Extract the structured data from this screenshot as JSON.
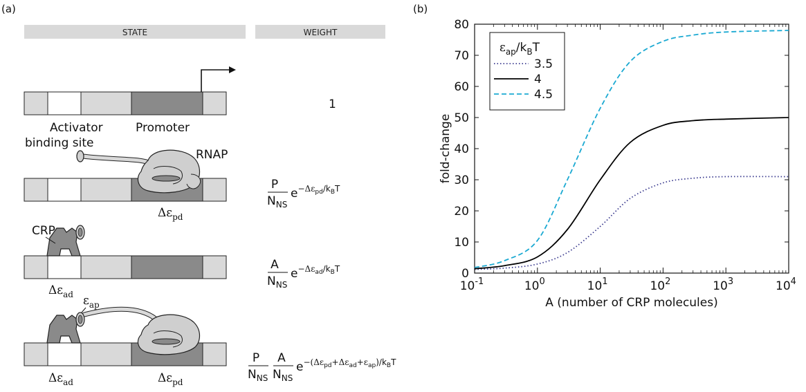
{
  "panel_a": {
    "tag": "(a)",
    "header_state": "STATE",
    "header_weight": "WEIGHT",
    "label_activator_line1": "Activator",
    "label_activator_line2": "binding site",
    "label_promoter": "Promoter",
    "label_rnap": "RNAP",
    "label_crp": "CRP",
    "weight_1": "1",
    "energy_pd": "Δε",
    "energy_pd_sub": "pd",
    "energy_ad": "Δε",
    "energy_ad_sub": "ad",
    "energy_ap": "ε",
    "energy_ap_sub": "ap",
    "w2_num": "P",
    "w2_den": "N",
    "w2_den_sub": "NS",
    "w2_exp": "e",
    "w2_exp_sup": "−Δε",
    "w2_exp_sup_sub": "pd",
    "w2_exp_sup_tail": "/k",
    "w2_exp_sup_tail_sub": "B",
    "w2_exp_sup_T": "T",
    "w3_num": "A",
    "w3_den": "N",
    "w3_den_sub": "NS",
    "w3_exp": "e",
    "w3_exp_sup": "−Δε",
    "w3_exp_sup_sub": "ad",
    "w3_exp_sup_tail": "/k",
    "w3_exp_sup_tail_sub": "B",
    "w3_exp_sup_T": "T",
    "w4_num1": "P",
    "w4_num2": "A",
    "w4_den": "N",
    "w4_den_sub": "NS",
    "w4_exp": "e",
    "w4_exp_sup_a": "−(Δε",
    "w4_exp_sup_a_sub": "pd",
    "w4_exp_sup_b": "+Δε",
    "w4_exp_sup_b_sub": "ad",
    "w4_exp_sup_c": "+ε",
    "w4_exp_sup_c_sub": "ap",
    "w4_exp_sup_d": ")/k",
    "w4_exp_sup_d_sub": "B",
    "w4_exp_sup_T": "T"
  },
  "panel_b": {
    "tag": "(b)"
  },
  "colors": {
    "header_bg": "#d9d9d9",
    "dna_light": "#d9d9d9",
    "dna_dark": "#8a8a8a",
    "protein": "#cfcfcf",
    "protein_dark": "#8a8a8a",
    "series_35": "#3b3b8f",
    "series_4": "#000000",
    "series_45": "#1aa9d2"
  },
  "chart_data": {
    "type": "line",
    "title": "",
    "xlabel": "A (number of CRP molecules)",
    "ylabel": "fold-change",
    "xscale": "log",
    "xlim": [
      0.1,
      10000
    ],
    "ylim": [
      0,
      80
    ],
    "xticks": [
      {
        "value": 0.1,
        "base": "10",
        "exp": "-1"
      },
      {
        "value": 1,
        "base": "10",
        "exp": "0"
      },
      {
        "value": 10,
        "base": "10",
        "exp": "1"
      },
      {
        "value": 100,
        "base": "10",
        "exp": "2"
      },
      {
        "value": 1000,
        "base": "10",
        "exp": "3"
      },
      {
        "value": 10000,
        "base": "10",
        "exp": "4"
      }
    ],
    "yticks": [
      "0",
      "10",
      "20",
      "30",
      "40",
      "50",
      "60",
      "70",
      "80"
    ],
    "legend_title": "ε",
    "legend_title_sub": "ap",
    "legend_title_tail": "/k",
    "legend_title_tail_sub": "B",
    "legend_title_T": "T",
    "legend_position": "top-left",
    "series": [
      {
        "name": "3.5",
        "style": "dotted",
        "color": "#3b3b8f",
        "x": [
          0.1,
          0.3,
          1,
          3,
          10,
          30,
          100,
          300,
          1000,
          10000
        ],
        "y": [
          1.2,
          1.6,
          2.9,
          6.6,
          15,
          24,
          29,
          30.5,
          31,
          31
        ]
      },
      {
        "name": "4",
        "style": "solid",
        "color": "#000000",
        "x": [
          0.1,
          0.3,
          1,
          3,
          10,
          30,
          100,
          300,
          1000,
          10000
        ],
        "y": [
          1.4,
          2.4,
          5.2,
          14,
          30,
          42,
          47.5,
          49,
          49.5,
          50
        ]
      },
      {
        "name": "4.5",
        "style": "dashed",
        "color": "#1aa9d2",
        "x": [
          0.1,
          0.3,
          1,
          3,
          10,
          30,
          100,
          300,
          1000,
          10000
        ],
        "y": [
          1.8,
          4.0,
          10.5,
          30,
          53,
          68,
          74.5,
          76.5,
          77.5,
          78
        ]
      }
    ]
  }
}
